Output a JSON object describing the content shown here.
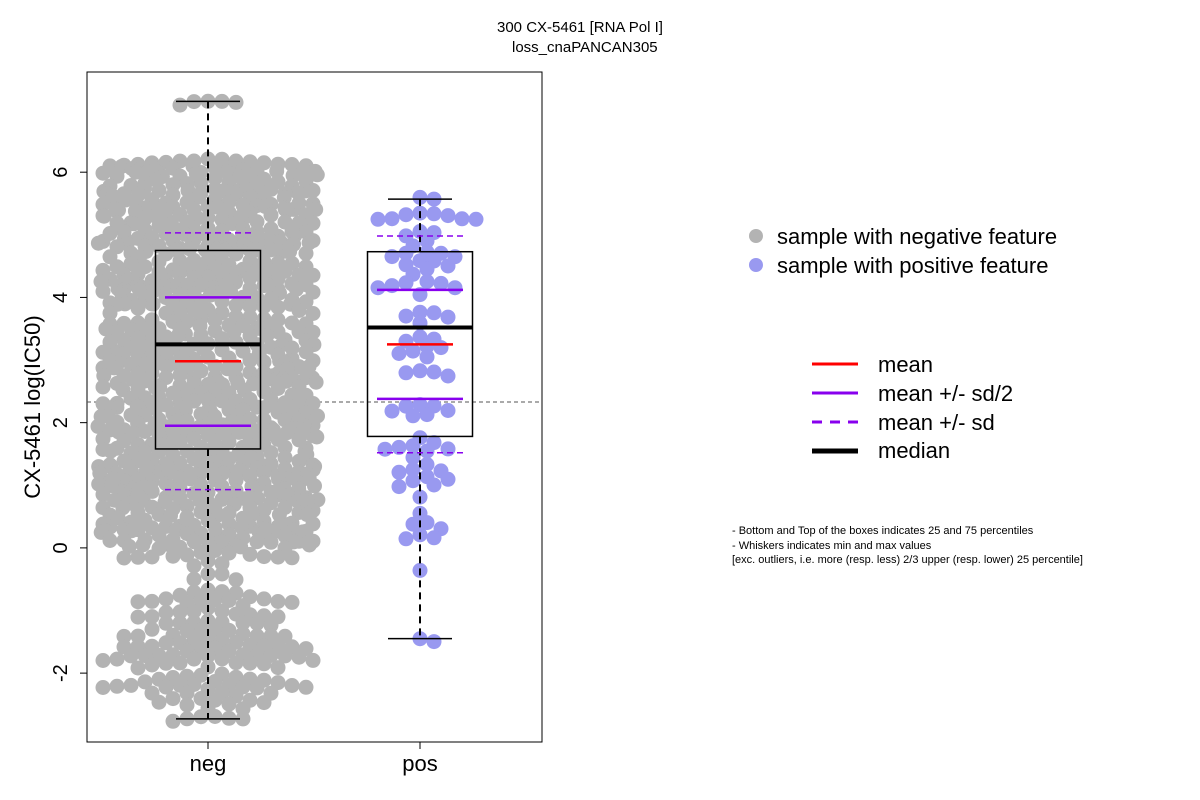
{
  "chart_data": {
    "type": "scatter",
    "subtype": "boxplot-beeswarm",
    "title": "300 CX-5461 [RNA Pol I]",
    "subtitle": "loss_cnaPANCAN305",
    "xlabel": "",
    "ylabel": "CX-5461 log(IC50)",
    "ylim": [
      -3.1,
      7.6
    ],
    "yticks": [
      "-2",
      "0",
      "2",
      "4",
      "6"
    ],
    "categories": [
      "neg",
      "pos"
    ],
    "reference_line_y": 2.33,
    "grid": false,
    "series": [
      {
        "name": "sample with negative feature",
        "category": "neg",
        "color": "#b3b3b3",
        "n_points": 950,
        "min": -2.73,
        "q1": 1.58,
        "median": 3.25,
        "q3": 4.75,
        "max": 7.13,
        "mean": 2.98,
        "mean_minus_half_sd": 1.95,
        "mean_plus_half_sd": 4.0,
        "mean_minus_sd": 0.93,
        "mean_plus_sd": 5.03,
        "values": [
          7.13,
          6.2,
          6.15,
          6.05,
          6.0,
          5.95,
          5.9,
          5.88,
          5.85,
          5.8,
          5.75,
          5.7,
          5.65,
          5.6,
          5.55,
          5.5,
          5.45,
          5.4,
          5.35,
          5.3,
          5.25,
          5.2,
          5.15,
          5.1,
          5.05,
          5.0,
          4.95,
          4.9,
          4.85,
          4.8,
          4.75,
          4.7,
          4.65,
          4.6,
          4.55,
          4.5,
          4.45,
          4.4,
          4.35,
          4.3,
          4.25,
          4.2,
          4.15,
          4.1,
          4.05,
          4.0,
          3.95,
          3.9,
          3.85,
          3.8,
          3.75,
          3.7,
          3.65,
          3.6,
          3.55,
          3.5,
          3.45,
          3.4,
          3.35,
          3.3,
          3.25,
          3.2,
          3.15,
          3.1,
          3.05,
          3.0,
          2.95,
          2.9,
          2.85,
          2.8,
          2.75,
          2.7,
          2.65,
          2.6,
          2.55,
          2.5,
          2.45,
          2.4,
          2.35,
          2.3,
          2.25,
          2.2,
          2.15,
          2.1,
          2.05,
          2.0,
          1.95,
          1.9,
          1.85,
          1.8,
          1.75,
          1.7,
          1.65,
          1.6,
          1.55,
          1.5,
          1.45,
          1.4,
          1.35,
          1.3,
          1.25,
          1.2,
          1.15,
          1.1,
          1.05,
          1.0,
          0.95,
          0.9,
          0.85,
          0.8,
          0.75,
          0.7,
          0.65,
          0.6,
          0.55,
          0.5,
          0.45,
          0.4,
          0.35,
          0.3,
          0.25,
          0.2,
          0.15,
          0.1,
          0.05,
          0.0,
          -0.1,
          -0.15,
          -0.25,
          -0.4,
          -0.55,
          -0.7,
          -0.8,
          -0.9,
          -1.05,
          -1.2,
          -1.35,
          -1.45,
          -1.55,
          -1.7,
          -1.75,
          -1.8,
          -1.9,
          -2.05,
          -2.15,
          -2.25,
          -2.35,
          -2.45,
          -2.55,
          -2.73
        ],
        "values_note": ""
      },
      {
        "name": "sample with positive feature",
        "category": "pos",
        "color": "#9999f0",
        "n_points": 83,
        "min": -1.45,
        "q1": 1.78,
        "median": 3.52,
        "q3": 4.73,
        "max": 5.57,
        "mean": 3.25,
        "mean_minus_half_sd": 2.38,
        "mean_plus_half_sd": 4.12,
        "mean_minus_sd": 1.52,
        "mean_plus_sd": 4.98,
        "values": [
          5.57,
          5.5,
          5.45,
          5.4,
          5.38,
          5.35,
          5.3,
          5.28,
          5.25,
          5.2,
          5.1,
          5.05,
          5.0,
          4.95,
          4.85,
          4.78,
          4.75,
          4.7,
          4.65,
          4.6,
          4.55,
          4.5,
          4.45,
          4.4,
          4.35,
          4.3,
          4.28,
          4.25,
          4.2,
          4.1,
          3.85,
          3.78,
          3.75,
          3.72,
          3.7,
          3.55,
          3.5,
          3.48,
          3.4,
          3.35,
          3.3,
          3.2,
          3.15,
          3.1,
          3.05,
          2.9,
          2.85,
          2.8,
          2.75,
          2.4,
          2.35,
          2.3,
          2.25,
          2.2,
          2.18,
          2.15,
          1.8,
          1.75,
          1.7,
          1.65,
          1.6,
          1.55,
          1.5,
          1.45,
          1.3,
          1.25,
          1.2,
          1.15,
          1.1,
          1.05,
          1.0,
          0.95,
          0.8,
          0.55,
          0.35,
          0.15,
          -0.3,
          -1.45
        ]
      }
    ]
  },
  "legend": {
    "series": [
      {
        "label": "sample with negative feature",
        "color": "#b3b3b3"
      },
      {
        "label": "sample with positive feature",
        "color": "#9999f0"
      }
    ],
    "lines": [
      {
        "label": "mean",
        "color": "#ff0000",
        "style": "solid"
      },
      {
        "label": "mean +/- sd/2",
        "color": "#8800ee",
        "style": "solid"
      },
      {
        "label": "mean +/- sd",
        "color": "#8800ee",
        "style": "dashed"
      },
      {
        "label": "median",
        "color": "#000000",
        "style": "solid-thick"
      }
    ]
  },
  "notes": [
    "- Bottom and Top of the boxes indicates 25 and 75 percentiles",
    "- Whiskers indicates min and max values",
    "[exc. outliers, i.e. more (resp. less) 2/3 upper (resp. lower) 25 percentile]"
  ]
}
